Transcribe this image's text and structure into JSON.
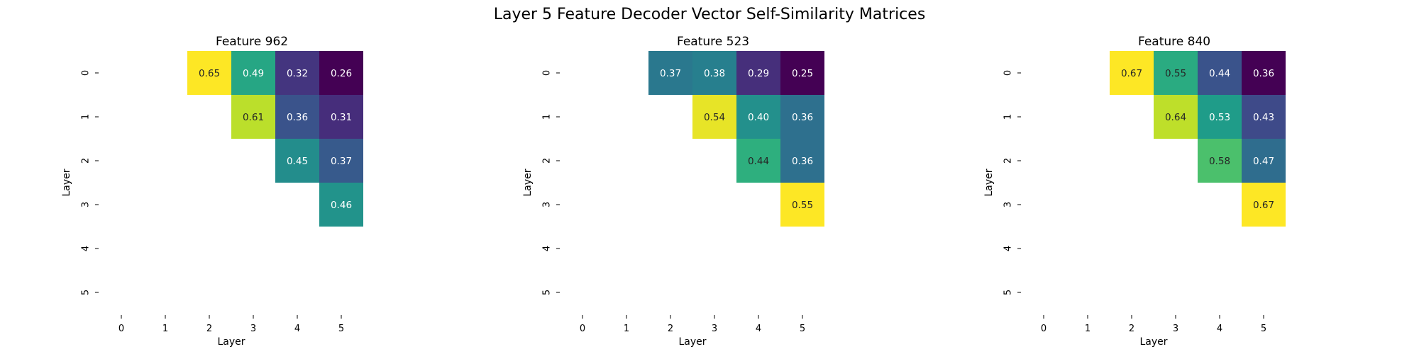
{
  "suptitle": "Layer 5 Feature Decoder Vector Self-Similarity Matrices",
  "chart_data": [
    {
      "type": "heatmap",
      "title": "Feature 962",
      "xlabel": "Layer",
      "ylabel": "Layer",
      "x_ticks": [
        "0",
        "1",
        "2",
        "3",
        "4",
        "5"
      ],
      "y_ticks": [
        "0",
        "1",
        "2",
        "3",
        "4",
        "5"
      ],
      "colormap": "viridis",
      "values": [
        [
          null,
          null,
          0.65,
          0.49,
          0.32,
          0.26
        ],
        [
          null,
          null,
          null,
          0.61,
          0.36,
          0.31
        ],
        [
          null,
          null,
          null,
          null,
          0.45,
          0.37
        ],
        [
          null,
          null,
          null,
          null,
          null,
          0.46
        ],
        [
          null,
          null,
          null,
          null,
          null,
          null
        ],
        [
          null,
          null,
          null,
          null,
          null,
          null
        ]
      ]
    },
    {
      "type": "heatmap",
      "title": "Feature 523",
      "xlabel": "Layer",
      "ylabel": "Layer",
      "x_ticks": [
        "0",
        "1",
        "2",
        "3",
        "4",
        "5"
      ],
      "y_ticks": [
        "0",
        "1",
        "2",
        "3",
        "4",
        "5"
      ],
      "colormap": "viridis",
      "values": [
        [
          null,
          null,
          0.37,
          0.38,
          0.29,
          0.25
        ],
        [
          null,
          null,
          null,
          0.54,
          0.4,
          0.36
        ],
        [
          null,
          null,
          null,
          null,
          0.44,
          0.36
        ],
        [
          null,
          null,
          null,
          null,
          null,
          0.55
        ],
        [
          null,
          null,
          null,
          null,
          null,
          null
        ],
        [
          null,
          null,
          null,
          null,
          null,
          null
        ]
      ]
    },
    {
      "type": "heatmap",
      "title": "Feature 840",
      "xlabel": "Layer",
      "ylabel": "Layer",
      "x_ticks": [
        "0",
        "1",
        "2",
        "3",
        "4",
        "5"
      ],
      "y_ticks": [
        "0",
        "1",
        "2",
        "3",
        "4",
        "5"
      ],
      "colormap": "viridis",
      "values": [
        [
          null,
          null,
          0.67,
          0.55,
          0.44,
          0.36
        ],
        [
          null,
          null,
          null,
          0.64,
          0.53,
          0.43
        ],
        [
          null,
          null,
          null,
          null,
          0.58,
          0.47
        ],
        [
          null,
          null,
          null,
          null,
          null,
          0.67
        ],
        [
          null,
          null,
          null,
          null,
          null,
          null
        ],
        [
          null,
          null,
          null,
          null,
          null,
          null
        ]
      ]
    }
  ]
}
